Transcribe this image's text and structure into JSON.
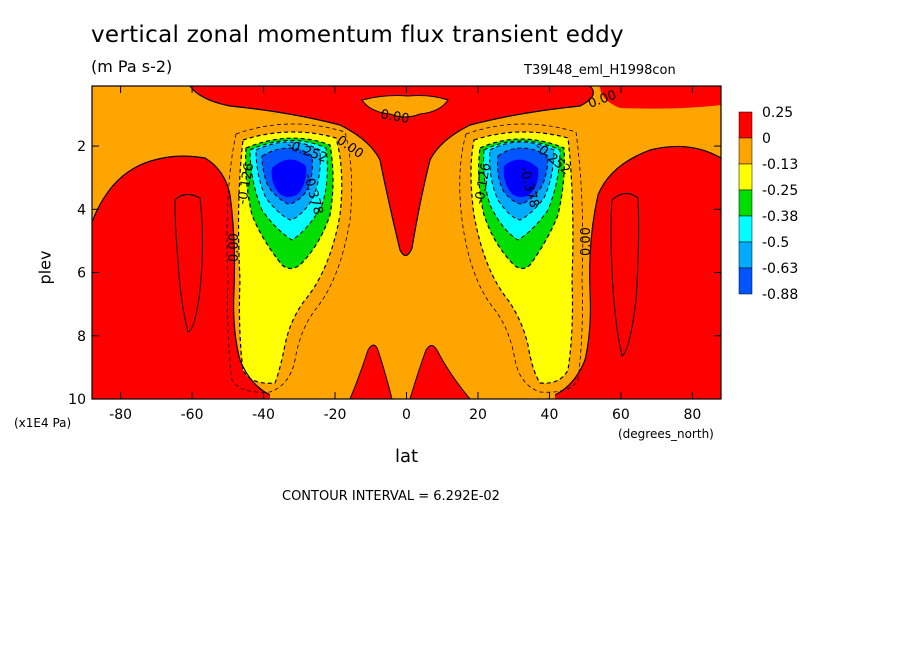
{
  "chart_data": {
    "type": "contour",
    "title": "vertical zonal momentum flux transient eddy",
    "subtitle": "(m Pa s-2)",
    "dataset_label": "T39L48_eml_H1998con",
    "xlabel": "lat",
    "x_units": "(degrees_north)",
    "ylabel": "plev",
    "y_units": "(x1E4 Pa)",
    "xlim": [
      -88,
      88
    ],
    "ylim": [
      0.1,
      10
    ],
    "y_inverted": true,
    "x_ticks": [
      "-80",
      "-60",
      "-40",
      "-20",
      "0",
      "20",
      "40",
      "60",
      "80"
    ],
    "x_tick_values": [
      -80,
      -60,
      -40,
      -20,
      0,
      20,
      40,
      60,
      80
    ],
    "y_ticks": [
      "2",
      "4",
      "6",
      "8",
      "10"
    ],
    "y_tick_values": [
      2,
      4,
      6,
      8,
      10
    ],
    "contour_interval_text": "CONTOUR INTERVAL = 6.292E-02",
    "legend": [
      {
        "label": "0.25",
        "color": "#ff0000"
      },
      {
        "label": "0",
        "color": "#ffa500"
      },
      {
        "label": "-0.13",
        "color": "#ffff00"
      },
      {
        "label": "-0.25",
        "color": "#00dd00"
      },
      {
        "label": "-0.38",
        "color": "#00ffff"
      },
      {
        "label": "-0.5",
        "color": "#00aaff"
      },
      {
        "label": "-0.63",
        "color": "#0055ff"
      },
      {
        "label": "-0.88",
        "color": ""
      }
    ],
    "contour_labels": [
      "0.00",
      "0.00",
      "0.00",
      "0.00",
      "0.00",
      "-0.126",
      "-0.126",
      "-0.252",
      "-0.252",
      "-0.378",
      "-0.378"
    ],
    "minima": [
      {
        "lat": -33,
        "plev": 3.1,
        "value": -0.88
      },
      {
        "lat": 32,
        "plev": 3.1,
        "value": -0.88
      }
    ]
  }
}
